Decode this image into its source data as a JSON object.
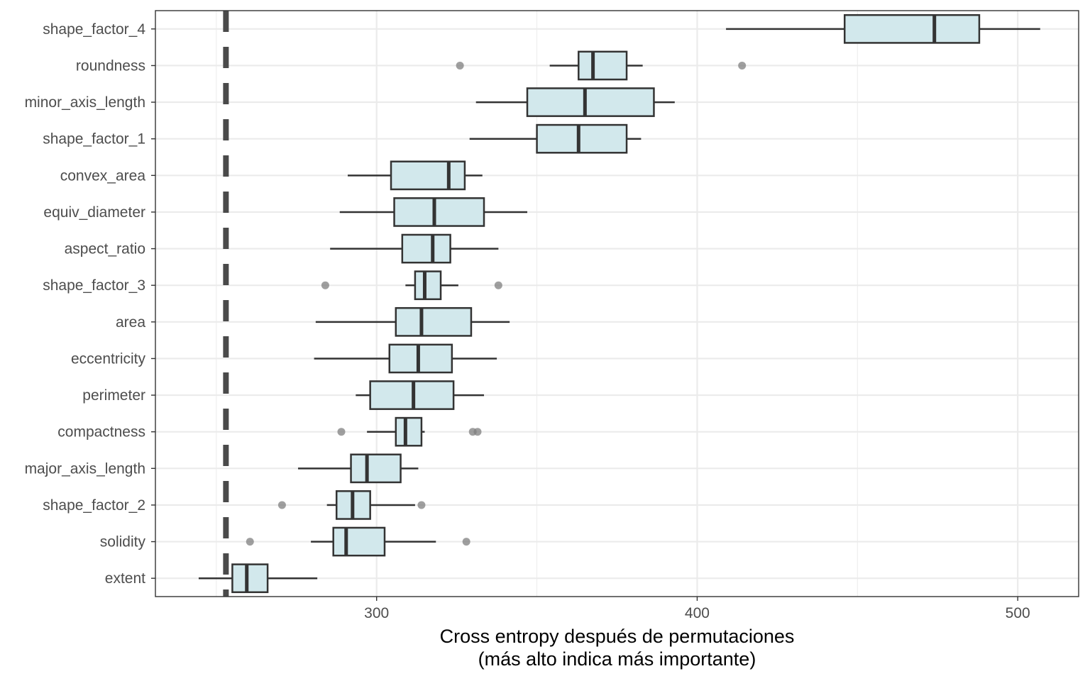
{
  "chart_data": {
    "type": "boxplot",
    "orientation": "horizontal",
    "title": "",
    "xlabel_lines": [
      "Cross entropy después de permutaciones",
      "(más alto indica más importante)"
    ],
    "ylabel": "",
    "xlim": [
      231,
      519
    ],
    "xticks": [
      300,
      400,
      500
    ],
    "xtick_labels": [
      "300",
      "400",
      "500"
    ],
    "x_minor_ticks": [
      250,
      350,
      450
    ],
    "reference_line": {
      "value": 253,
      "style": "dashed"
    },
    "grid": true,
    "colors": {
      "box_fill": "#d2e8ec",
      "box_stroke": "#333333",
      "outlier": "#7f7f7f",
      "reference": "#4a4a4a",
      "grid": "#ebebeb",
      "panel_border": "#333333"
    },
    "categories": [
      "shape_factor_4",
      "roundness",
      "minor_axis_length",
      "shape_factor_1",
      "convex_area",
      "equiv_diameter",
      "aspect_ratio",
      "shape_factor_3",
      "area",
      "eccentricity",
      "perimeter",
      "compactness",
      "major_axis_length",
      "shape_factor_2",
      "solidity",
      "extent"
    ],
    "boxes": [
      {
        "name": "shape_factor_4",
        "whisker_low": 409,
        "q1": 446,
        "median": 474,
        "q3": 488,
        "whisker_high": 507,
        "outliers": []
      },
      {
        "name": "roundness",
        "whisker_low": 354,
        "q1": 363,
        "median": 367.5,
        "q3": 378,
        "whisker_high": 383,
        "outliers": [
          326,
          414
        ]
      },
      {
        "name": "minor_axis_length",
        "whisker_low": 331,
        "q1": 347,
        "median": 365,
        "q3": 386.5,
        "whisker_high": 393,
        "outliers": []
      },
      {
        "name": "shape_factor_1",
        "whisker_low": 329,
        "q1": 350,
        "median": 363,
        "q3": 378,
        "whisker_high": 382.5,
        "outliers": []
      },
      {
        "name": "convex_area",
        "whisker_low": 291,
        "q1": 304.5,
        "median": 322.5,
        "q3": 327.5,
        "whisker_high": 333,
        "outliers": []
      },
      {
        "name": "equiv_diameter",
        "whisker_low": 288.5,
        "q1": 305.5,
        "median": 318,
        "q3": 333.5,
        "whisker_high": 347,
        "outliers": []
      },
      {
        "name": "aspect_ratio",
        "whisker_low": 285.5,
        "q1": 308,
        "median": 317.5,
        "q3": 323,
        "whisker_high": 338,
        "outliers": []
      },
      {
        "name": "shape_factor_3",
        "whisker_low": 309,
        "q1": 312,
        "median": 315,
        "q3": 320,
        "whisker_high": 325.5,
        "outliers": [
          284,
          338
        ]
      },
      {
        "name": "area",
        "whisker_low": 281,
        "q1": 306,
        "median": 314,
        "q3": 329.5,
        "whisker_high": 341.5,
        "outliers": []
      },
      {
        "name": "eccentricity",
        "whisker_low": 280.5,
        "q1": 304,
        "median": 313,
        "q3": 323.5,
        "whisker_high": 337.5,
        "outliers": []
      },
      {
        "name": "perimeter",
        "whisker_low": 293.5,
        "q1": 298,
        "median": 311.5,
        "q3": 324,
        "whisker_high": 333.5,
        "outliers": []
      },
      {
        "name": "compactness",
        "whisker_low": 297,
        "q1": 306,
        "median": 309,
        "q3": 314,
        "whisker_high": 315,
        "outliers": [
          289,
          330,
          331.5
        ]
      },
      {
        "name": "major_axis_length",
        "whisker_low": 275.5,
        "q1": 292,
        "median": 297,
        "q3": 307.5,
        "whisker_high": 313,
        "outliers": []
      },
      {
        "name": "shape_factor_2",
        "whisker_low": 284.5,
        "q1": 287.5,
        "median": 292.5,
        "q3": 298,
        "whisker_high": 312,
        "outliers": [
          270.5,
          314
        ]
      },
      {
        "name": "solidity",
        "whisker_low": 279.5,
        "q1": 286.5,
        "median": 290.5,
        "q3": 302.5,
        "whisker_high": 318.5,
        "outliers": [
          260.5,
          328
        ]
      },
      {
        "name": "extent",
        "whisker_low": 244.5,
        "q1": 255,
        "median": 259.5,
        "q3": 266,
        "whisker_high": 281.5,
        "outliers": []
      }
    ]
  }
}
